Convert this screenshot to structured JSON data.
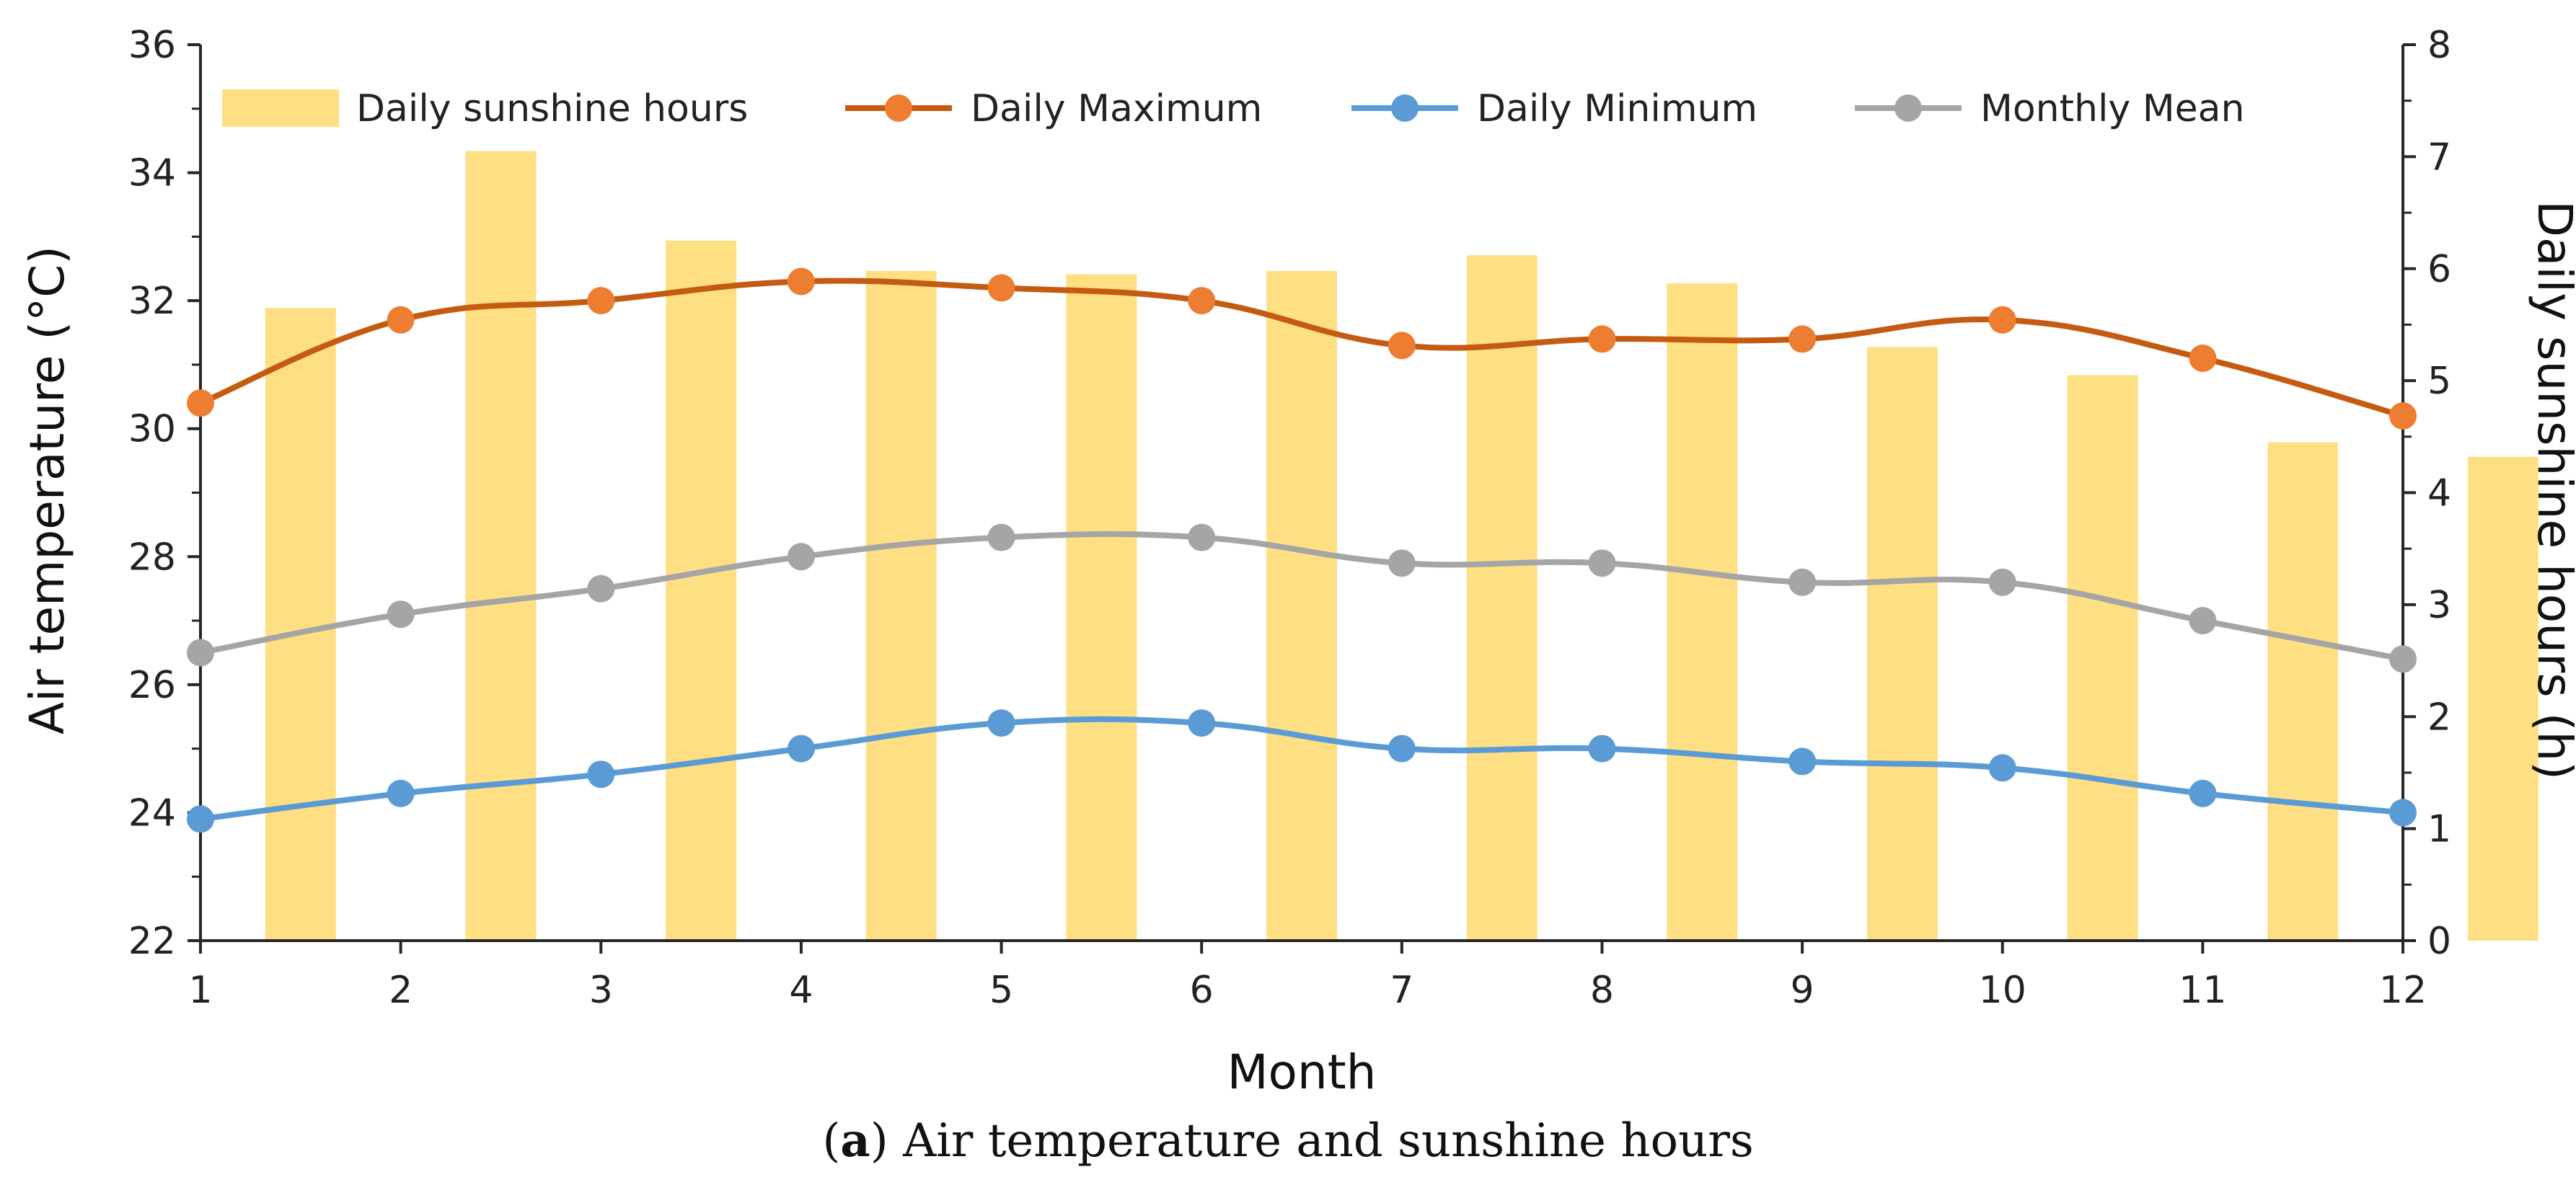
{
  "chart_data": {
    "type": "bar+line",
    "categories": [
      "1",
      "2",
      "3",
      "4",
      "5",
      "6",
      "7",
      "8",
      "9",
      "10",
      "11",
      "12"
    ],
    "xlabel": "Month",
    "ylabel": "Air temperature (°C)",
    "y2label": "Daily sunshine hours (h)",
    "ylim": [
      22,
      36
    ],
    "yticks": [
      "22",
      "24",
      "26",
      "28",
      "30",
      "32",
      "34",
      "36"
    ],
    "y2lim": [
      0,
      8
    ],
    "y2ticks": [
      "0",
      "1",
      "2",
      "3",
      "4",
      "5",
      "6",
      "7",
      "8"
    ],
    "legend_position": "top",
    "grid": false,
    "bars": {
      "name": "Daily sunshine hours",
      "axis": "right",
      "color": "#FFDF84",
      "values": [
        5.65,
        7.05,
        6.25,
        5.98,
        5.95,
        5.98,
        6.12,
        5.87,
        5.3,
        5.05,
        4.45,
        4.32
      ]
    },
    "series": [
      {
        "name": "Daily Maximum",
        "axis": "left",
        "color": "#C55A11",
        "marker_color": "#ED7D31",
        "values": [
          30.4,
          31.7,
          32.0,
          32.3,
          32.2,
          32.0,
          31.3,
          31.4,
          31.4,
          31.7,
          31.1,
          30.2
        ]
      },
      {
        "name": "Daily Minimum",
        "axis": "left",
        "color": "#5B9BD5",
        "marker_color": "#5B9BD5",
        "values": [
          23.9,
          24.3,
          24.6,
          25.0,
          25.4,
          25.4,
          25.0,
          25.0,
          24.8,
          24.7,
          24.3,
          24.0
        ]
      },
      {
        "name": "Monthly Mean",
        "axis": "left",
        "color": "#A5A5A5",
        "marker_color": "#A5A5A5",
        "values": [
          26.5,
          27.1,
          27.5,
          28.0,
          28.3,
          28.3,
          27.9,
          27.9,
          27.6,
          27.6,
          27.0,
          26.4
        ]
      }
    ]
  },
  "caption": {
    "label": "a",
    "text": ") Air temperature and sunshine hours"
  }
}
